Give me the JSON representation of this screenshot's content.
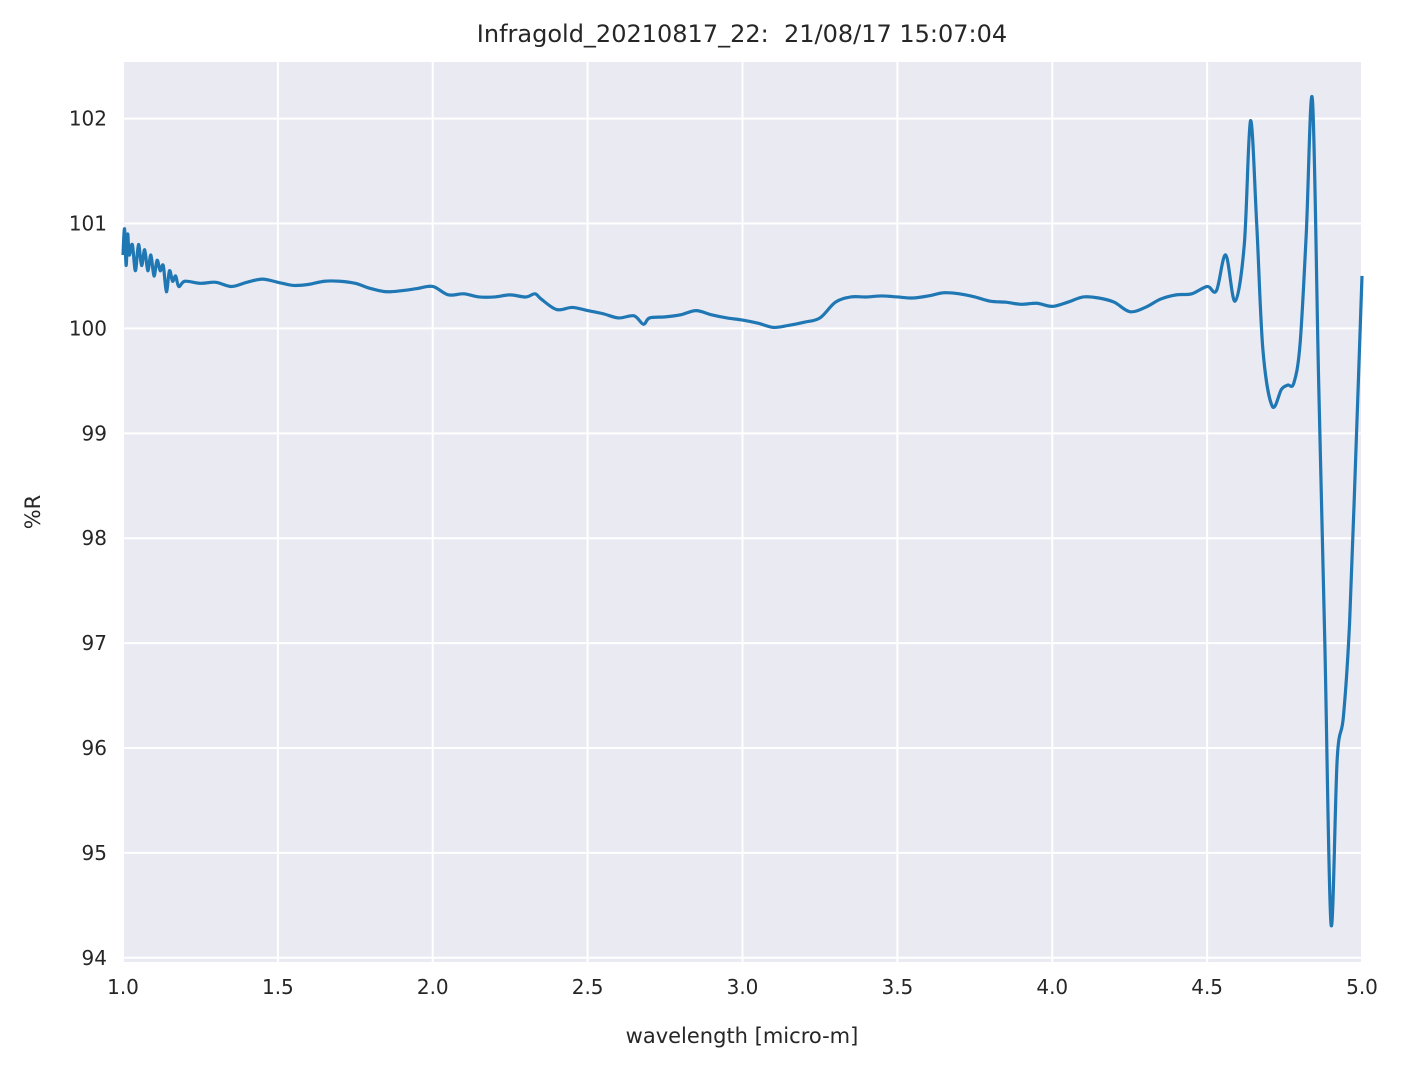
{
  "chart_data": {
    "type": "line",
    "title": "Infragold_20210817_22:  21/08/17 15:07:04",
    "xlabel": "wavelength [micro-m]",
    "ylabel": "%R",
    "xlim": [
      1.0,
      5.0
    ],
    "ylim": [
      93.96,
      102.54
    ],
    "xticks": [
      1.0,
      1.5,
      2.0,
      2.5,
      3.0,
      3.5,
      4.0,
      4.5,
      5.0
    ],
    "xtick_labels": [
      "1.0",
      "1.5",
      "2.0",
      "2.5",
      "3.0",
      "3.5",
      "4.0",
      "4.5",
      "5.0"
    ],
    "yticks": [
      94,
      95,
      96,
      97,
      98,
      99,
      100,
      101,
      102
    ],
    "ytick_labels": [
      "94",
      "95",
      "96",
      "97",
      "98",
      "99",
      "100",
      "101",
      "102"
    ],
    "grid": true,
    "colors": {
      "background": "#eaeaf2",
      "grid": "#ffffff",
      "line": "#1f77b4"
    },
    "series": [
      {
        "x": [
          1.0,
          1.005,
          1.01,
          1.015,
          1.02,
          1.03,
          1.04,
          1.05,
          1.06,
          1.07,
          1.08,
          1.09,
          1.1,
          1.11,
          1.12,
          1.13,
          1.14,
          1.15,
          1.16,
          1.17,
          1.18,
          1.2,
          1.25,
          1.3,
          1.35,
          1.4,
          1.45,
          1.5,
          1.55,
          1.6,
          1.65,
          1.7,
          1.75,
          1.8,
          1.85,
          1.9,
          1.95,
          2.0,
          2.05,
          2.1,
          2.15,
          2.2,
          2.25,
          2.3,
          2.33,
          2.35,
          2.4,
          2.45,
          2.5,
          2.55,
          2.6,
          2.65,
          2.68,
          2.7,
          2.75,
          2.8,
          2.85,
          2.9,
          2.95,
          3.0,
          3.05,
          3.1,
          3.15,
          3.2,
          3.25,
          3.3,
          3.35,
          3.4,
          3.45,
          3.5,
          3.55,
          3.6,
          3.65,
          3.7,
          3.75,
          3.8,
          3.85,
          3.9,
          3.95,
          4.0,
          4.05,
          4.1,
          4.15,
          4.2,
          4.25,
          4.3,
          4.35,
          4.4,
          4.45,
          4.5,
          4.53,
          4.56,
          4.59,
          4.62,
          4.64,
          4.66,
          4.68,
          4.71,
          4.74,
          4.76,
          4.78,
          4.8,
          4.82,
          4.84,
          4.86,
          4.88,
          4.9,
          4.92,
          4.94,
          4.96,
          4.98,
          5.0
        ],
        "y": [
          100.7,
          100.95,
          100.6,
          100.9,
          100.7,
          100.8,
          100.55,
          100.8,
          100.6,
          100.75,
          100.55,
          100.7,
          100.5,
          100.65,
          100.55,
          100.6,
          100.35,
          100.55,
          100.45,
          100.5,
          100.4,
          100.45,
          100.43,
          100.44,
          100.4,
          100.44,
          100.47,
          100.44,
          100.41,
          100.42,
          100.45,
          100.45,
          100.43,
          100.38,
          100.35,
          100.36,
          100.38,
          100.4,
          100.32,
          100.33,
          100.3,
          100.3,
          100.32,
          100.3,
          100.33,
          100.28,
          100.18,
          100.2,
          100.17,
          100.14,
          100.1,
          100.12,
          100.04,
          100.1,
          100.11,
          100.13,
          100.17,
          100.13,
          100.1,
          100.08,
          100.05,
          100.01,
          100.03,
          100.06,
          100.1,
          100.25,
          100.3,
          100.3,
          100.31,
          100.3,
          100.29,
          100.31,
          100.34,
          100.33,
          100.3,
          100.26,
          100.25,
          100.23,
          100.24,
          100.21,
          100.25,
          100.3,
          100.29,
          100.25,
          100.16,
          100.2,
          100.28,
          100.32,
          100.33,
          100.4,
          100.36,
          100.7,
          100.26,
          100.8,
          101.98,
          101.0,
          99.8,
          99.26,
          99.42,
          99.46,
          99.48,
          99.85,
          100.9,
          102.18,
          99.5,
          97.0,
          94.32,
          95.9,
          96.3,
          97.2,
          98.8,
          100.5
        ]
      }
    ]
  }
}
